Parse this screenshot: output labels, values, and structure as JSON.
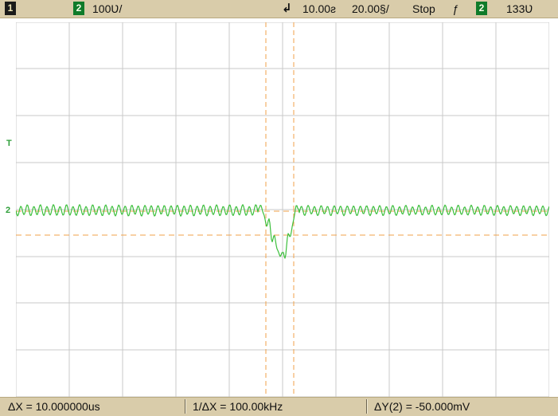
{
  "header": {
    "channel1_badge": "1",
    "channel2_badge": "2",
    "channel2_scale": "100Ʋ/",
    "trigger_position": "10.00ƨ",
    "timebase": "20.00§/",
    "run_state": "Stop",
    "trigger_edge_glyph": "ƒ",
    "trigger_source_badge": "2",
    "trigger_level": "133Ʋ"
  },
  "screen": {
    "channel2_ground_marker": "2",
    "trigger_level_marker": "T",
    "trigger_marker_glyph": "↲"
  },
  "measurements": {
    "delta_x": "ΔX = 10.000000us",
    "inverse_delta_x": "1/ΔX = 100.00kHz",
    "delta_y": "ΔY(2) = -50.000mV"
  },
  "colors": {
    "trace": "#3cbf3c",
    "grid": "#c9c9c9",
    "cursor": "#f1a24a",
    "status_bar": "#d9ccaa"
  }
}
